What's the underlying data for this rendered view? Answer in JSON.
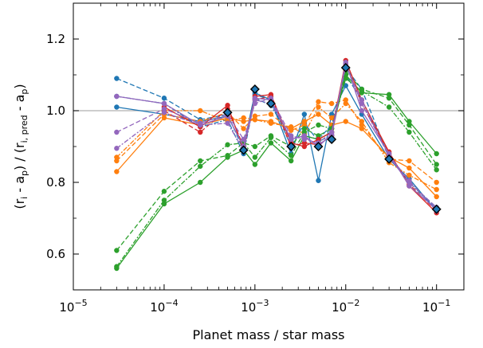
{
  "chart_data": {
    "type": "line",
    "xlabel": "Planet mass / star mass",
    "ylabel_parts": [
      "(r",
      "i",
      " - a",
      "p",
      ") / (r",
      "i, pred",
      " - a",
      "p",
      ")"
    ],
    "xscale": "log",
    "xlim": [
      1e-05,
      0.2
    ],
    "ylim": [
      0.5,
      1.3
    ],
    "x_ticks": [
      {
        "value": 1e-05,
        "base": "10",
        "exp": "−5"
      },
      {
        "value": 0.0001,
        "base": "10",
        "exp": "−4"
      },
      {
        "value": 0.001,
        "base": "10",
        "exp": "−3"
      },
      {
        "value": 0.01,
        "base": "10",
        "exp": "−2"
      },
      {
        "value": 0.1,
        "base": "10",
        "exp": "−1"
      }
    ],
    "y_ticks": [
      "0.6",
      "0.8",
      "1.0",
      "1.2"
    ],
    "reference_line": 1.0,
    "grid": false,
    "colors": {
      "blue": "#1f77b4",
      "orange": "#ff7f0e",
      "green": "#2ca02c",
      "red": "#d62728",
      "purple": "#9467bd",
      "reference": "#b0b0b0"
    },
    "x": [
      3e-05,
      0.0001,
      0.00025,
      0.0005,
      0.00075,
      0.001,
      0.0015,
      0.0025,
      0.0035,
      0.005,
      0.007,
      0.01,
      0.015,
      0.03,
      0.05,
      0.1
    ],
    "series": [
      {
        "color": "blue",
        "dash": "6,3",
        "values": [
          1.09,
          1.035,
          0.975,
          0.99,
          0.89,
          1.045,
          1.03,
          0.9,
          0.965,
          0.915,
          0.93,
          1.12,
          1.06,
          0.87,
          0.8,
          0.73
        ]
      },
      {
        "color": "blue",
        "dash": "",
        "values": [
          1.01,
          0.99,
          0.97,
          0.985,
          0.9,
          1.05,
          1.03,
          0.88,
          0.99,
          0.805,
          0.99,
          1.07,
          0.99,
          0.865,
          0.81,
          0.72
        ]
      },
      {
        "color": "blue",
        "dash": "6,2,2,2",
        "values": [
          1.04,
          1.02,
          0.955,
          0.975,
          0.88,
          1.035,
          1.015,
          0.92,
          0.93,
          0.92,
          0.96,
          1.1,
          1.03,
          0.875,
          0.8,
          0.725
        ]
      },
      {
        "color": "orange",
        "dash": "",
        "values": [
          0.83,
          0.98,
          0.96,
          0.98,
          0.97,
          0.975,
          0.97,
          0.95,
          0.97,
          0.99,
          0.96,
          0.97,
          0.95,
          0.87,
          0.84,
          0.76
        ]
      },
      {
        "color": "orange",
        "dash": "6,3",
        "values": [
          0.86,
          0.99,
          0.97,
          0.995,
          0.95,
          0.985,
          0.99,
          0.945,
          0.96,
          1.025,
          1.02,
          1.03,
          0.96,
          0.865,
          0.86,
          0.8
        ]
      },
      {
        "color": "orange",
        "dash": "6,2,2,2",
        "values": [
          0.87,
          1.0,
          1.0,
          0.97,
          0.98,
          0.975,
          0.965,
          0.955,
          0.935,
          1.01,
          0.98,
          1.02,
          0.97,
          0.855,
          0.82,
          0.78
        ]
      },
      {
        "color": "green",
        "dash": "",
        "values": [
          0.56,
          0.74,
          0.8,
          0.87,
          0.89,
          0.85,
          0.91,
          0.86,
          0.93,
          0.92,
          0.94,
          1.1,
          1.05,
          1.045,
          0.97,
          0.88
        ]
      },
      {
        "color": "green",
        "dash": "6,3",
        "values": [
          0.61,
          0.775,
          0.86,
          0.875,
          0.91,
          0.9,
          0.93,
          0.9,
          0.95,
          0.93,
          0.95,
          1.11,
          1.06,
          1.035,
          0.96,
          0.85
        ]
      },
      {
        "color": "green",
        "dash": "6,2,2,2",
        "values": [
          0.565,
          0.75,
          0.845,
          0.905,
          0.91,
          0.87,
          0.925,
          0.875,
          0.94,
          0.96,
          0.95,
          1.09,
          1.055,
          1.01,
          0.94,
          0.835
        ]
      },
      {
        "color": "red",
        "dash": "",
        "values": [
          null,
          1.01,
          0.955,
          1.015,
          0.89,
          1.04,
          1.045,
          0.91,
          0.9,
          0.92,
          0.94,
          1.14,
          1.03,
          0.885,
          0.79,
          0.715
        ]
      },
      {
        "color": "red",
        "dash": "6,3",
        "values": [
          null,
          1.0,
          0.94,
          1.005,
          0.9,
          1.03,
          1.04,
          0.9,
          0.91,
          0.905,
          0.93,
          1.13,
          1.02,
          0.88,
          0.795,
          0.72
        ]
      },
      {
        "color": "purple",
        "dash": "",
        "values": [
          1.04,
          1.02,
          0.96,
          0.985,
          0.9,
          1.035,
          1.03,
          0.92,
          0.93,
          0.9,
          0.935,
          1.135,
          1.0,
          0.88,
          0.79,
          0.725
        ]
      },
      {
        "color": "purple",
        "dash": "6,3",
        "values": [
          0.94,
          1.005,
          0.965,
          0.99,
          0.92,
          1.02,
          1.035,
          0.93,
          0.92,
          0.91,
          0.94,
          1.125,
          1.03,
          0.87,
          0.8,
          0.73
        ]
      },
      {
        "color": "purple",
        "dash": "6,2,2,2",
        "values": [
          0.895,
          0.995,
          0.96,
          0.965,
          0.89,
          1.03,
          1.02,
          0.925,
          0.925,
          0.905,
          0.93,
          1.13,
          1.02,
          0.875,
          0.805,
          0.72
        ]
      }
    ],
    "diamond_markers": [
      {
        "x": 0.0005,
        "y": 0.995
      },
      {
        "x": 0.00075,
        "y": 0.89
      },
      {
        "x": 0.001,
        "y": 1.06
      },
      {
        "x": 0.0015,
        "y": 1.02
      },
      {
        "x": 0.0025,
        "y": 0.9
      },
      {
        "x": 0.005,
        "y": 0.9
      },
      {
        "x": 0.007,
        "y": 0.92
      },
      {
        "x": 0.01,
        "y": 1.12
      },
      {
        "x": 0.03,
        "y": 0.865
      },
      {
        "x": 0.1,
        "y": 0.725
      }
    ]
  }
}
